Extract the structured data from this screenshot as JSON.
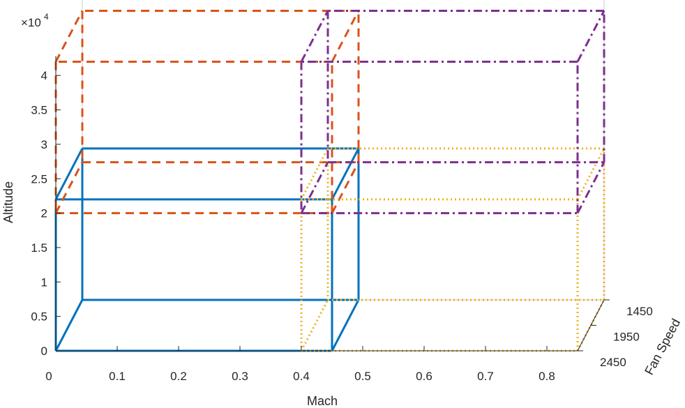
{
  "chart_data": {
    "type": "3d-box",
    "title": "",
    "xlabel": "Mach",
    "ylabel": "Altitude",
    "zlabel": "Fan Speed",
    "xlim": [
      0,
      0.85
    ],
    "xticks": [
      "0",
      "0.1",
      "0.2",
      "0.3",
      "0.4",
      "0.5",
      "0.6",
      "0.7",
      "0.8"
    ],
    "ylim": [
      0,
      42000
    ],
    "yticks": [
      "0",
      "0.5",
      "1",
      "1.5",
      "2",
      "2.5",
      "3",
      "3.5",
      "4"
    ],
    "yexponent_base": "×10",
    "yexponent_power": "4",
    "zticks": [
      "1450",
      "1950",
      "2450"
    ],
    "grid": false,
    "boxes": [
      {
        "name": "",
        "mach": [
          0,
          0.45
        ],
        "altitude": [
          0,
          22000
        ],
        "fan_speed": [
          1450,
          2450
        ],
        "color": "#0072BD",
        "line_style": "solid"
      },
      {
        "name": "",
        "mach": [
          0,
          0.45
        ],
        "altitude": [
          20000,
          42000
        ],
        "fan_speed": [
          1450,
          2450
        ],
        "color": "#D95319",
        "line_style": "dashed"
      },
      {
        "name": "",
        "mach": [
          0.4,
          0.85
        ],
        "altitude": [
          0,
          22000
        ],
        "fan_speed": [
          1450,
          2450
        ],
        "color": "#EDB120",
        "line_style": "dotted"
      },
      {
        "name": "",
        "mach": [
          0.4,
          0.85
        ],
        "altitude": [
          20000,
          42000
        ],
        "fan_speed": [
          1450,
          2450
        ],
        "color": "#7E2F8E",
        "line_style": "dashdot"
      }
    ]
  }
}
